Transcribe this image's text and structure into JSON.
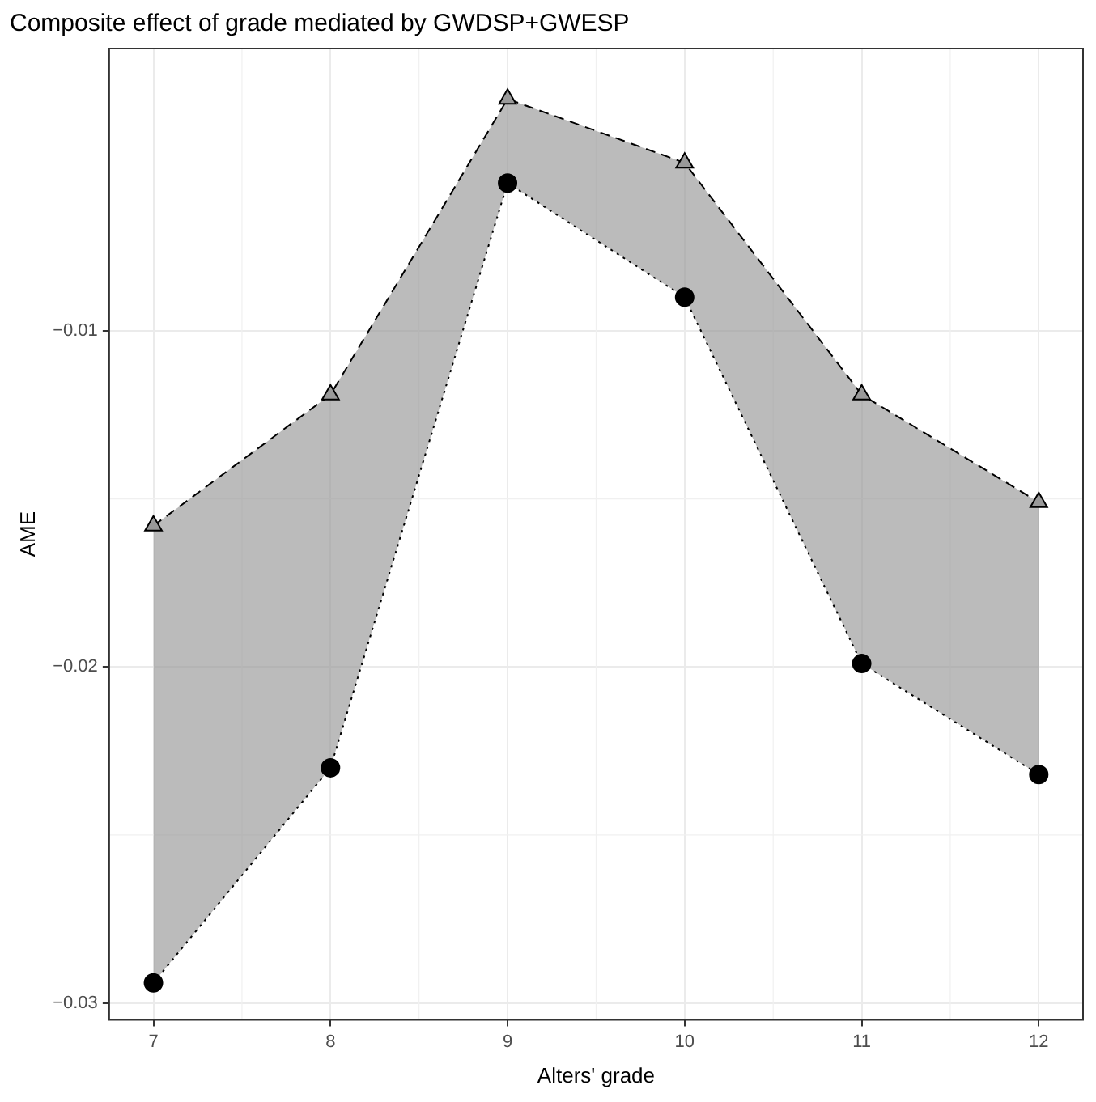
{
  "chart_data": {
    "type": "line",
    "title": "Composite effect of grade mediated by GWDSP+GWESP",
    "xlabel": "Alters' grade",
    "ylabel": "AME",
    "x": [
      7,
      8,
      9,
      10,
      11,
      12
    ],
    "series": [
      {
        "type": "line",
        "color": "#000000",
        "marker": "triangle",
        "line_style": "dashed",
        "values": [
          -0.0158,
          -0.0119,
          -0.0031,
          -0.005,
          -0.0119,
          -0.0151
        ]
      },
      {
        "type": "area",
        "color": "#000000",
        "marker": "circle",
        "line_style": "dotted",
        "values": [
          -0.0294,
          -0.023,
          -0.0056,
          -0.009,
          -0.0199,
          -0.0232
        ]
      }
    ],
    "xlim": [
      6.75,
      12.25
    ],
    "xticks": [
      7,
      8,
      9,
      10,
      11,
      12
    ],
    "ylim": [
      -0.0305,
      -0.0016
    ],
    "yticks": [
      {
        "value": -0.03,
        "label": "−0.03"
      },
      {
        "value": -0.02,
        "label": "−0.02"
      },
      {
        "value": -0.01,
        "label": "−0.01"
      }
    ],
    "grid": true,
    "legend": false
  }
}
